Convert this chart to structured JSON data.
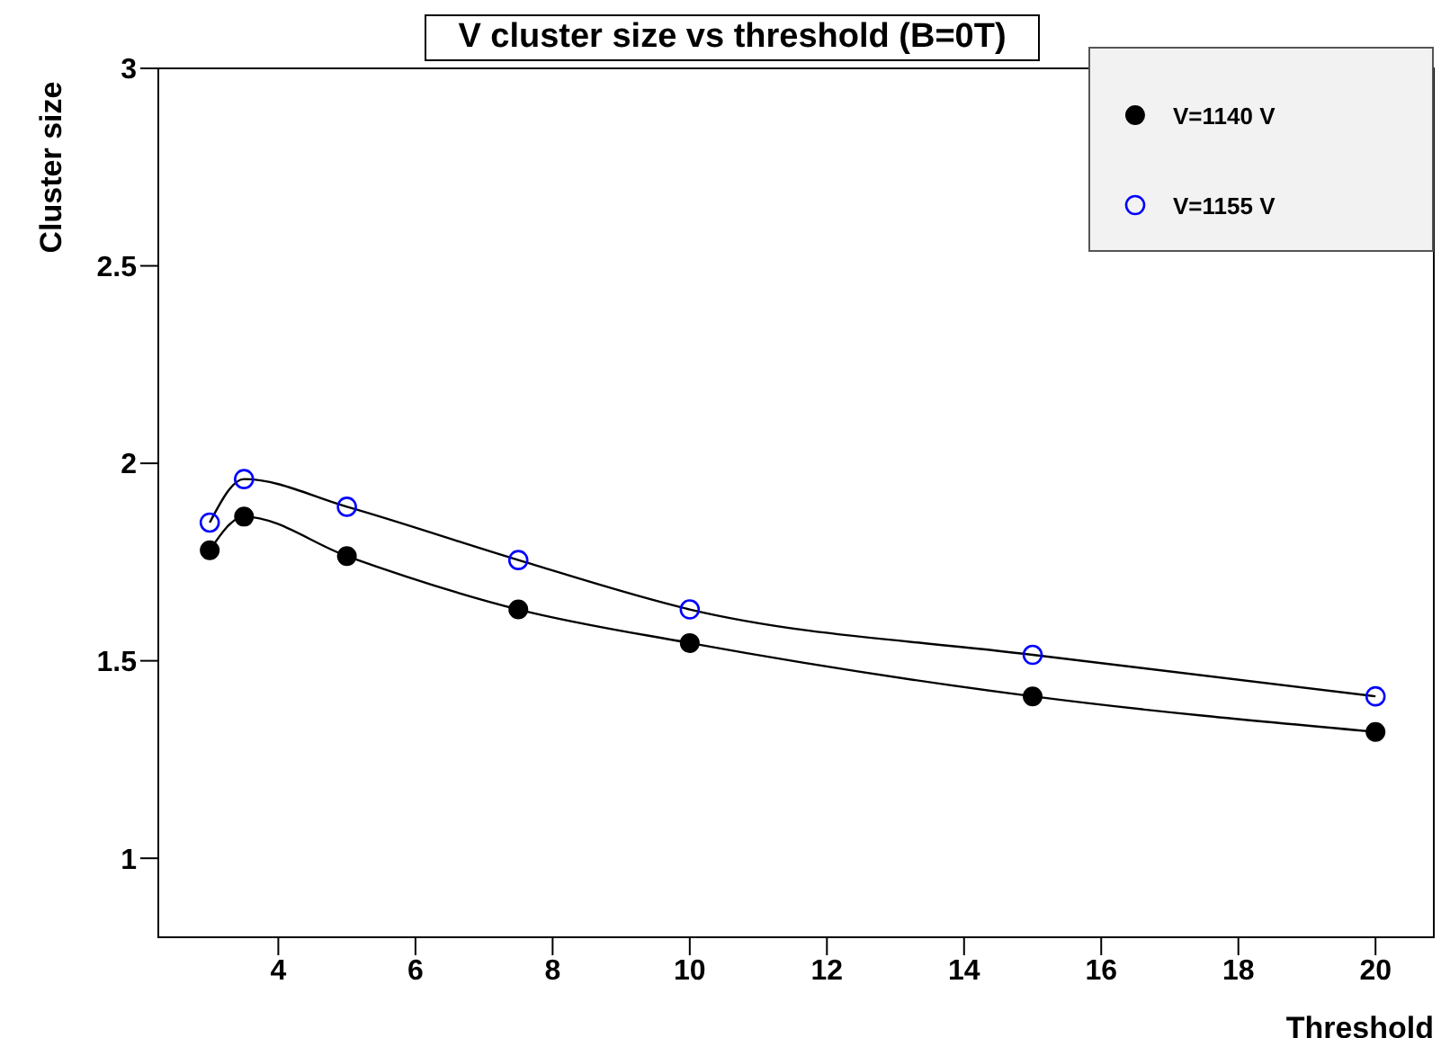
{
  "chart_data": {
    "type": "scatter",
    "title": "V cluster size vs threshold (B=0T)",
    "xlabel": "Threshold",
    "ylabel": "Cluster size",
    "xlim": [
      2.25,
      20.85
    ],
    "xticks": [
      4,
      6,
      8,
      10,
      12,
      14,
      16,
      18,
      20
    ],
    "ylim": [
      0.8,
      3
    ],
    "yticks": [
      1,
      1.5,
      2,
      2.5,
      3
    ],
    "grid": false,
    "legend": "top right",
    "marker": "circle",
    "series": [
      {
        "name": "V=1140 V",
        "color": "#000000",
        "x": [
          3,
          3.5,
          5,
          7.5,
          10,
          15,
          20
        ],
        "values": [
          1.78,
          1.865,
          1.765,
          1.63,
          1.545,
          1.41,
          1.32
        ]
      },
      {
        "name": "V=1155 V",
        "color": "#0000ff",
        "marker": "open-circle",
        "x": [
          3,
          3.5,
          5,
          7.5,
          10,
          15,
          20
        ],
        "values": [
          1.85,
          1.96,
          1.89,
          1.755,
          1.63,
          1.515,
          1.41
        ]
      },
      {
        "type": "line",
        "color": "#000000",
        "marker": "none",
        "x": [
          3,
          3.5,
          5,
          7.5,
          10,
          15,
          20
        ],
        "values": [
          1.78,
          1.865,
          1.765,
          1.63,
          1.545,
          1.41,
          1.32
        ]
      },
      {
        "type": "line",
        "color": "#000000",
        "marker": "none",
        "x": [
          3,
          3.5,
          5,
          7.5,
          10,
          15,
          20
        ],
        "values": [
          1.85,
          1.96,
          1.89,
          1.755,
          1.63,
          1.515,
          1.41
        ]
      }
    ]
  }
}
